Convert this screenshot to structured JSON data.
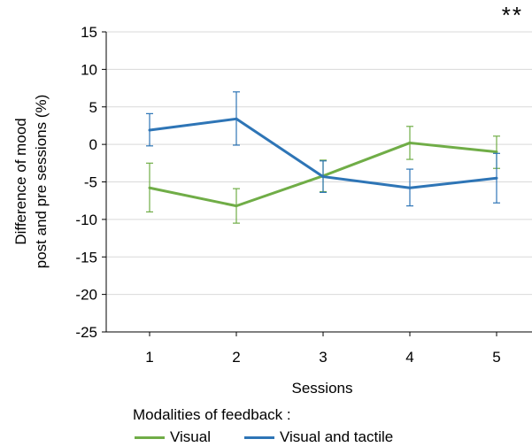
{
  "chart_data": {
    "type": "line",
    "title": "",
    "significance_marker": "**",
    "xlabel": "Sessions",
    "ylabel_lines": [
      "Difference of mood",
      "post and pre sessions (%)"
    ],
    "categories": [
      "1",
      "2",
      "3",
      "4",
      "5"
    ],
    "ylim": [
      -25,
      15
    ],
    "yticks": [
      15,
      10,
      5,
      0,
      -5,
      -10,
      -15,
      -20,
      -25
    ],
    "ytick_labels": [
      "15",
      "10",
      "5",
      "0",
      "-5",
      "-10",
      "-15",
      "-20",
      "-25"
    ],
    "grid": true,
    "legend_title": "Modalities of feedback :",
    "legend_position": "bottom",
    "series": [
      {
        "name": "Visual",
        "color": "#70AD47",
        "values": [
          -5.8,
          -8.2,
          -4.2,
          0.2,
          -1.0
        ],
        "err_low": [
          -9.0,
          -10.5,
          -6.3,
          -2.0,
          -3.2
        ],
        "err_high": [
          -2.5,
          -5.9,
          -2.1,
          2.4,
          1.1
        ]
      },
      {
        "name": "Visual and tactile",
        "color": "#2E75B6",
        "values": [
          1.9,
          3.4,
          -4.3,
          -5.8,
          -4.5
        ],
        "err_low": [
          -0.2,
          -0.1,
          -6.4,
          -8.2,
          -7.8
        ],
        "err_high": [
          4.1,
          7.0,
          -2.2,
          -3.3,
          -1.2
        ]
      }
    ]
  }
}
